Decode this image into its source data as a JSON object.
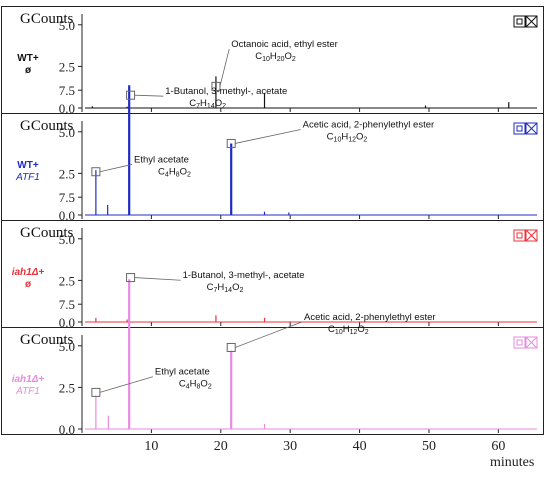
{
  "chart_data": [
    {
      "type": "line",
      "y_unit_label": "GCounts",
      "sample_label_line1": "WT+",
      "sample_label_line2": "ø",
      "color": "#111111",
      "xlim": [
        0,
        66
      ],
      "ylim": [
        0,
        10
      ],
      "yticks": [
        "0.0",
        "2.5",
        "5.0",
        "7.5"
      ],
      "peaks": [
        {
          "x": 1.5,
          "y": 0.1
        },
        {
          "x": 6.5,
          "y": 0.08
        },
        {
          "x": 19.3,
          "y": 1.9
        },
        {
          "x": 26.3,
          "y": 0.9
        },
        {
          "x": 49.5,
          "y": 0.15
        },
        {
          "x": 61.5,
          "y": 0.35
        }
      ],
      "annotations": [
        {
          "name": "Octanoic acid, ethyl ester",
          "formula": "C10H20O2",
          "formula_main": "C",
          "formula_parts": [
            "10",
            "H",
            "20",
            "O",
            "2"
          ],
          "x": 19.3,
          "y": 1.3
        }
      ],
      "label_points": [
        {
          "x": 21.5,
          "y": 3.3
        }
      ]
    },
    {
      "type": "line",
      "y_unit_label": "GCounts",
      "sample_label_line1": "WT+",
      "sample_label_line2": "ATF1",
      "color": "#1f2bc2",
      "xlim": [
        0,
        66
      ],
      "ylim": [
        0,
        10
      ],
      "yticks": [
        "0.0",
        "2.5",
        "5.0",
        "7.5"
      ],
      "peaks": [
        {
          "x": 2.0,
          "y": 2.7
        },
        {
          "x": 3.7,
          "y": 0.6
        },
        {
          "x": 6.8,
          "y": 7.8
        },
        {
          "x": 21.5,
          "y": 4.3
        },
        {
          "x": 26.3,
          "y": 0.2
        },
        {
          "x": 29.8,
          "y": 0.15
        }
      ],
      "annotations": [
        {
          "name": "1-Butanol, 3-methyl-, acetate",
          "formula": "C7H14O2",
          "formula_main": "C",
          "formula_parts": [
            "7",
            "H",
            "14",
            "O",
            "2"
          ],
          "x": 7.0,
          "y": 7.2
        },
        {
          "name": "Ethyl acetate",
          "formula": "C4H8O2",
          "formula_main": "C",
          "formula_parts": [
            "4",
            "H",
            "8",
            "O",
            "2"
          ],
          "x": 2.0,
          "y": 2.6
        },
        {
          "name": "Acetic acid, 2-phenylethyl ester",
          "formula": "C10H12O2",
          "formula_main": "C",
          "formula_parts": [
            "10",
            "H",
            "12",
            "O",
            "2"
          ],
          "x": 21.5,
          "y": 4.3
        }
      ],
      "label_points": [
        {
          "x": 12.0,
          "y": 6.9
        },
        {
          "x": 7.5,
          "y": 2.8
        },
        {
          "x": 31.8,
          "y": 4.9
        }
      ]
    },
    {
      "type": "line",
      "y_unit_label": "GCounts",
      "sample_label_line1": "iah1Δ+",
      "sample_label_line2": "ø",
      "color": "#e8333c",
      "xlim": [
        0,
        66
      ],
      "ylim": [
        0,
        10
      ],
      "yticks": [
        "0.0",
        "2.5",
        "5.0",
        "7.5"
      ],
      "peaks": [
        {
          "x": 2.0,
          "y": 0.25
        },
        {
          "x": 6.5,
          "y": 0.15
        },
        {
          "x": 19.3,
          "y": 0.4
        },
        {
          "x": 26.3,
          "y": 0.25
        }
      ],
      "annotations": [],
      "label_points": []
    },
    {
      "type": "line",
      "y_unit_label": "GCounts",
      "sample_label_line1": "iah1Δ+",
      "sample_label_line2": "ATF1",
      "color": "#e98ae0",
      "xlim": [
        0,
        66
      ],
      "ylim": [
        0,
        10
      ],
      "yticks": [
        "0.0",
        "2.5",
        "5.0",
        "7.5"
      ],
      "peaks": [
        {
          "x": 2.0,
          "y": 2.0
        },
        {
          "x": 3.8,
          "y": 0.8
        },
        {
          "x": 6.8,
          "y": 9.0
        },
        {
          "x": 21.5,
          "y": 4.7
        },
        {
          "x": 26.3,
          "y": 0.3
        }
      ],
      "annotations": [
        {
          "name": "1-Butanol, 3-methyl-, acetate",
          "formula": "C7H14O2",
          "formula_main": "C",
          "formula_parts": [
            "7",
            "H",
            "14",
            "O",
            "2"
          ],
          "x": 7.0,
          "y": 9.1
        },
        {
          "name": "Ethyl acetate",
          "formula": "C4H8O2",
          "formula_main": "C",
          "formula_parts": [
            "4",
            "H",
            "8",
            "O",
            "2"
          ],
          "x": 2.0,
          "y": 2.2
        },
        {
          "name": "Acetic acid, 2-phenylethyl ester",
          "formula": "C10H12O2",
          "formula_main": "C",
          "formula_parts": [
            "10",
            "H",
            "12",
            "O",
            "2"
          ],
          "x": 21.5,
          "y": 4.9
        }
      ],
      "label_points": [
        {
          "x": 14.5,
          "y": 8.7
        },
        {
          "x": 10.5,
          "y": 2.9
        },
        {
          "x": 32.0,
          "y": 6.2
        }
      ]
    }
  ],
  "x_axis": {
    "ticks": [
      10,
      20,
      30,
      40,
      50,
      60
    ],
    "tick_labels": [
      "10",
      "20",
      "30",
      "40",
      "50",
      "60"
    ],
    "label": "minutes"
  }
}
